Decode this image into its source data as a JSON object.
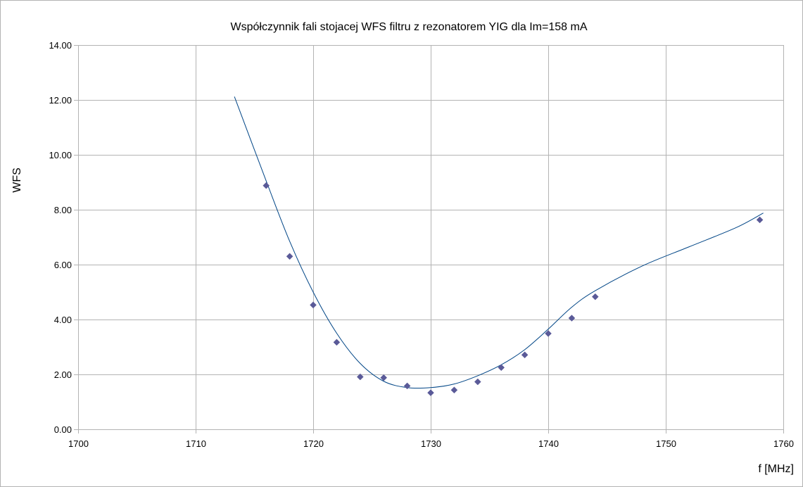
{
  "chart_data": {
    "type": "scatter",
    "title": "Współczynnik fali stojacej WFS filtru z rezonatorem YIG dla Im=158 mA",
    "xlabel": "f [MHz]",
    "ylabel": "WFS",
    "xlim": [
      1700,
      1760
    ],
    "ylim": [
      0,
      14
    ],
    "x_ticks": [
      1700,
      1710,
      1720,
      1730,
      1740,
      1750,
      1760
    ],
    "y_ticks": [
      0,
      2,
      4,
      6,
      8,
      10,
      12,
      14
    ],
    "y_tick_labels": [
      "0.00",
      "2.00",
      "4.00",
      "6.00",
      "8.00",
      "10.00",
      "12.00",
      "14.00"
    ],
    "grid": true,
    "legend": "none",
    "series": [
      {
        "marker": "diamond",
        "color": "#5a5a98",
        "points": [
          {
            "x": 1716,
            "y": 8.88
          },
          {
            "x": 1718,
            "y": 6.3
          },
          {
            "x": 1720,
            "y": 4.53
          },
          {
            "x": 1722,
            "y": 3.17
          },
          {
            "x": 1724,
            "y": 1.91
          },
          {
            "x": 1726,
            "y": 1.88
          },
          {
            "x": 1728,
            "y": 1.58
          },
          {
            "x": 1730,
            "y": 1.33
          },
          {
            "x": 1732,
            "y": 1.43
          },
          {
            "x": 1734,
            "y": 1.73
          },
          {
            "x": 1736,
            "y": 2.25
          },
          {
            "x": 1738,
            "y": 2.71
          },
          {
            "x": 1740,
            "y": 3.49
          },
          {
            "x": 1742,
            "y": 4.05
          },
          {
            "x": 1744,
            "y": 4.83
          },
          {
            "x": 1758,
            "y": 7.63
          }
        ]
      }
    ],
    "trendline": {
      "color": "#004586",
      "points": [
        {
          "x": 1713.3,
          "y": 12.12
        },
        {
          "x": 1716,
          "y": 9.05
        },
        {
          "x": 1718,
          "y": 6.85
        },
        {
          "x": 1720,
          "y": 5.0
        },
        {
          "x": 1722,
          "y": 3.5
        },
        {
          "x": 1724,
          "y": 2.4
        },
        {
          "x": 1726,
          "y": 1.75
        },
        {
          "x": 1728,
          "y": 1.52
        },
        {
          "x": 1730,
          "y": 1.52
        },
        {
          "x": 1732,
          "y": 1.65
        },
        {
          "x": 1734,
          "y": 1.95
        },
        {
          "x": 1736,
          "y": 2.35
        },
        {
          "x": 1738,
          "y": 2.9
        },
        {
          "x": 1740,
          "y": 3.65
        },
        {
          "x": 1742,
          "y": 4.45
        },
        {
          "x": 1744,
          "y": 5.05
        },
        {
          "x": 1748,
          "y": 5.95
        },
        {
          "x": 1752,
          "y": 6.65
        },
        {
          "x": 1756,
          "y": 7.35
        },
        {
          "x": 1758.3,
          "y": 7.88
        }
      ]
    }
  }
}
